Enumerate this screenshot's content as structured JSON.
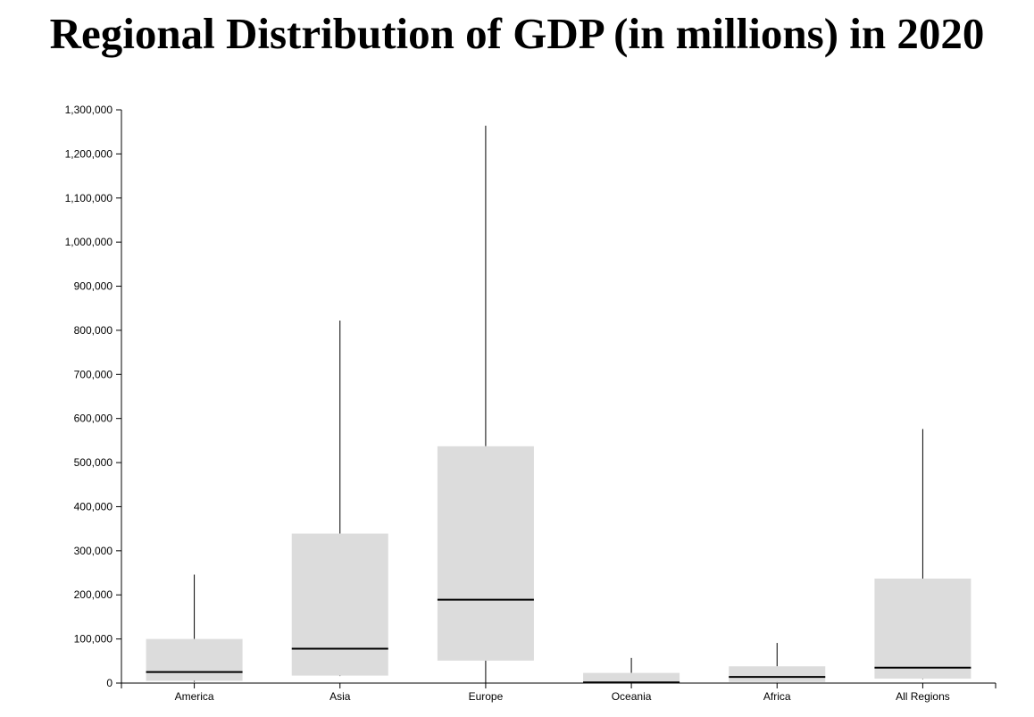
{
  "chart_data": {
    "type": "boxplot",
    "title": "Regional Distribution of GDP (in millions) in 2020",
    "xlabel": "",
    "ylabel": "",
    "ylim": [
      0,
      1300000
    ],
    "y_ticks": [
      "0",
      "100,000",
      "200,000",
      "300,000",
      "400,000",
      "500,000",
      "600,000",
      "700,000",
      "800,000",
      "900,000",
      "1,000,000",
      "1,100,000",
      "1,200,000",
      "1,300,000"
    ],
    "y_tick_values": [
      0,
      100000,
      200000,
      300000,
      400000,
      500000,
      600000,
      700000,
      800000,
      900000,
      1000000,
      1100000,
      1200000,
      1300000
    ],
    "categories": [
      "America",
      "Asia",
      "Europe",
      "Oceania",
      "Africa",
      "All Regions"
    ],
    "boxes": [
      {
        "category": "America",
        "min": 3000,
        "q1": 5000,
        "median": 25000,
        "q3": 100000,
        "max": 246000
      },
      {
        "category": "Asia",
        "min": 16000,
        "q1": 17000,
        "median": 78000,
        "q3": 339000,
        "max": 822000
      },
      {
        "category": "Europe",
        "min": 0,
        "q1": 51000,
        "median": 189000,
        "q3": 537000,
        "max": 1264000
      },
      {
        "category": "Oceania",
        "min": 0,
        "q1": 1000,
        "median": 1500,
        "q3": 23000,
        "max": 57000
      },
      {
        "category": "Africa",
        "min": 2000,
        "q1": 2500,
        "median": 14000,
        "q3": 38000,
        "max": 91000
      },
      {
        "category": "All Regions",
        "min": 9000,
        "q1": 10000,
        "median": 35000,
        "q3": 237000,
        "max": 576000
      }
    ],
    "colors": {
      "box_fill": "#dcdcdc",
      "median": "#000000",
      "whisker": "#000000",
      "axis": "#000000"
    },
    "grid": false
  }
}
